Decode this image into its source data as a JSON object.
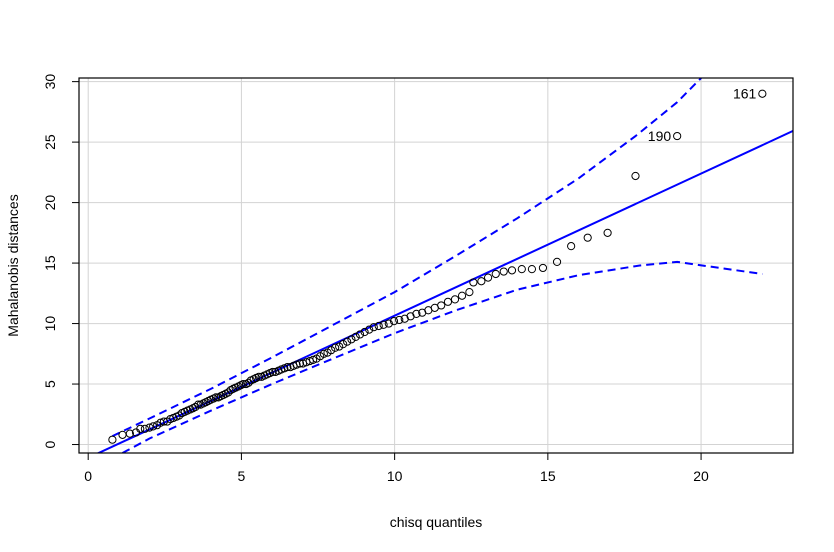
{
  "chart_data": {
    "type": "scatter",
    "title": "",
    "xlabel": "chisq quantiles",
    "ylabel": "Mahalanobis distances",
    "xlim": [
      -0.3,
      23.0
    ],
    "ylim": [
      -0.7,
      30.3
    ],
    "xticks": [
      0,
      5,
      10,
      15,
      20
    ],
    "yticks": [
      0,
      5,
      10,
      15,
      20,
      25,
      30
    ],
    "grid": true,
    "colors": {
      "points": "#000000",
      "lines": "#0000ff",
      "grid": "#d3d3d3"
    },
    "points": [
      [
        0.79,
        0.4
      ],
      [
        1.12,
        0.8
      ],
      [
        1.36,
        0.9
      ],
      [
        1.56,
        1.0
      ],
      [
        1.7,
        1.3
      ],
      [
        1.85,
        1.3
      ],
      [
        2.0,
        1.4
      ],
      [
        2.12,
        1.5
      ],
      [
        2.25,
        1.6
      ],
      [
        2.36,
        1.8
      ],
      [
        2.47,
        1.9
      ],
      [
        2.58,
        1.9
      ],
      [
        2.68,
        2.1
      ],
      [
        2.78,
        2.2
      ],
      [
        2.88,
        2.3
      ],
      [
        2.97,
        2.4
      ],
      [
        3.06,
        2.6
      ],
      [
        3.15,
        2.7
      ],
      [
        3.24,
        2.8
      ],
      [
        3.33,
        2.9
      ],
      [
        3.42,
        3.0
      ],
      [
        3.5,
        3.1
      ],
      [
        3.59,
        3.3
      ],
      [
        3.67,
        3.3
      ],
      [
        3.76,
        3.4
      ],
      [
        3.84,
        3.5
      ],
      [
        3.92,
        3.6
      ],
      [
        4.0,
        3.7
      ],
      [
        4.09,
        3.8
      ],
      [
        4.17,
        3.9
      ],
      [
        4.25,
        3.9
      ],
      [
        4.33,
        4.0
      ],
      [
        4.41,
        4.1
      ],
      [
        4.49,
        4.2
      ],
      [
        4.57,
        4.3
      ],
      [
        4.65,
        4.5
      ],
      [
        4.73,
        4.6
      ],
      [
        4.81,
        4.7
      ],
      [
        4.9,
        4.8
      ],
      [
        4.98,
        4.9
      ],
      [
        5.06,
        5.0
      ],
      [
        5.15,
        5.0
      ],
      [
        5.23,
        5.1
      ],
      [
        5.31,
        5.3
      ],
      [
        5.4,
        5.4
      ],
      [
        5.48,
        5.5
      ],
      [
        5.57,
        5.6
      ],
      [
        5.66,
        5.6
      ],
      [
        5.75,
        5.7
      ],
      [
        5.84,
        5.8
      ],
      [
        5.93,
        5.9
      ],
      [
        6.02,
        6.0
      ],
      [
        6.11,
        6.0
      ],
      [
        6.21,
        6.1
      ],
      [
        6.3,
        6.2
      ],
      [
        6.4,
        6.3
      ],
      [
        6.5,
        6.4
      ],
      [
        6.6,
        6.4
      ],
      [
        6.7,
        6.5
      ],
      [
        6.8,
        6.6
      ],
      [
        6.91,
        6.7
      ],
      [
        7.01,
        6.7
      ],
      [
        7.12,
        6.8
      ],
      [
        7.23,
        6.9
      ],
      [
        7.34,
        7.0
      ],
      [
        7.45,
        7.1
      ],
      [
        7.57,
        7.3
      ],
      [
        7.69,
        7.5
      ],
      [
        7.81,
        7.6
      ],
      [
        7.93,
        7.8
      ],
      [
        8.06,
        8.0
      ],
      [
        8.19,
        8.1
      ],
      [
        8.32,
        8.3
      ],
      [
        8.45,
        8.5
      ],
      [
        8.59,
        8.7
      ],
      [
        8.73,
        8.9
      ],
      [
        8.87,
        9.1
      ],
      [
        9.02,
        9.3
      ],
      [
        9.17,
        9.5
      ],
      [
        9.32,
        9.7
      ],
      [
        9.48,
        9.8
      ],
      [
        9.64,
        9.9
      ],
      [
        9.81,
        10.0
      ],
      [
        9.98,
        10.2
      ],
      [
        10.15,
        10.3
      ],
      [
        10.33,
        10.4
      ],
      [
        10.52,
        10.6
      ],
      [
        10.71,
        10.8
      ],
      [
        10.9,
        10.9
      ],
      [
        11.1,
        11.1
      ],
      [
        11.31,
        11.3
      ],
      [
        11.52,
        11.5
      ],
      [
        11.74,
        11.8
      ],
      [
        11.97,
        12.0
      ],
      [
        12.2,
        12.3
      ],
      [
        12.44,
        12.6
      ],
      [
        12.57,
        13.4
      ],
      [
        12.83,
        13.5
      ],
      [
        13.05,
        13.8
      ],
      [
        13.3,
        14.1
      ],
      [
        13.56,
        14.3
      ],
      [
        13.83,
        14.4
      ],
      [
        14.15,
        14.5
      ],
      [
        14.48,
        14.5
      ],
      [
        14.84,
        14.6
      ],
      [
        15.3,
        15.1
      ],
      [
        15.76,
        16.4
      ],
      [
        16.3,
        17.1
      ],
      [
        16.95,
        17.5
      ],
      [
        17.86,
        22.2
      ],
      [
        19.22,
        25.5
      ],
      [
        22.0,
        29.0
      ]
    ],
    "point_labels": [
      {
        "text": "190",
        "x": 19.22,
        "y": 25.5
      },
      {
        "text": "161",
        "x": 22.0,
        "y": 29.0
      }
    ],
    "reference_line": {
      "intercept": -1.1,
      "slope": 1.175
    },
    "upper_envelope": [
      [
        0.79,
        0.7
      ],
      [
        2,
        2.15
      ],
      [
        4,
        4.6
      ],
      [
        6,
        7.2
      ],
      [
        8,
        9.9
      ],
      [
        10,
        12.6
      ],
      [
        12,
        15.6
      ],
      [
        14,
        18.7
      ],
      [
        16,
        22.0
      ],
      [
        17.86,
        25.5
      ],
      [
        19.22,
        28.3
      ],
      [
        20.0,
        30.3
      ]
    ],
    "lower_envelope": [
      [
        1.12,
        -0.7
      ],
      [
        2,
        0.5
      ],
      [
        4,
        2.8
      ],
      [
        6,
        5.0
      ],
      [
        7.6,
        6.7
      ],
      [
        10,
        9.2
      ],
      [
        12,
        11.1
      ],
      [
        14,
        12.8
      ],
      [
        16,
        14.0
      ],
      [
        18,
        14.8
      ],
      [
        19.22,
        15.1
      ],
      [
        22.0,
        14.1
      ]
    ]
  }
}
